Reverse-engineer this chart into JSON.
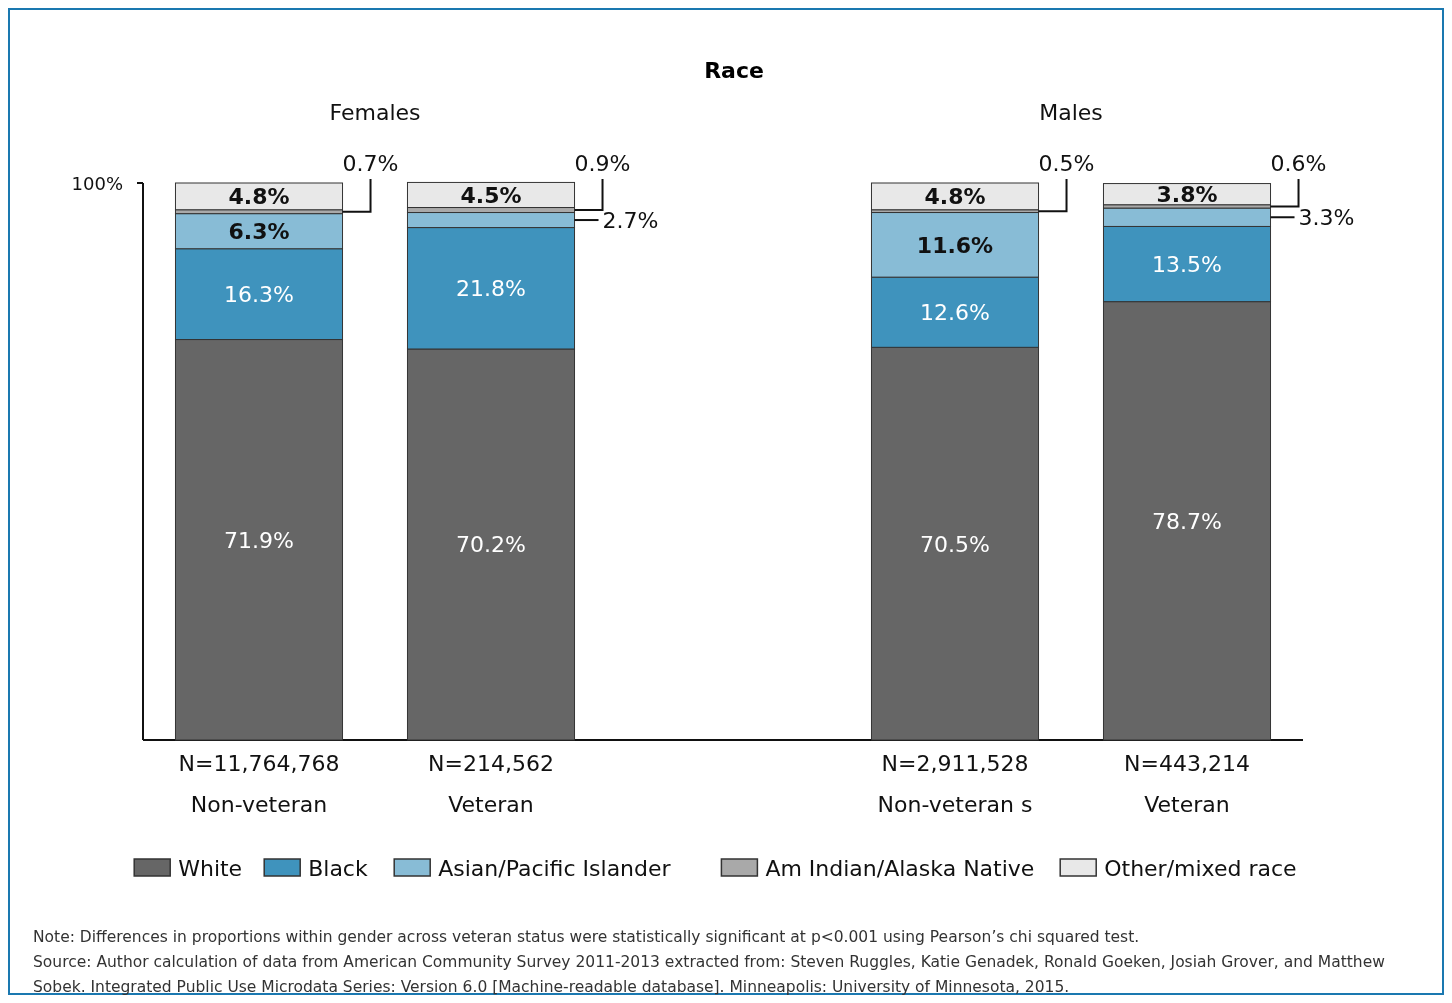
{
  "chart_data": {
    "type": "bar",
    "stacked": true,
    "title": "Race",
    "categories": [
      "N=11,764,768\nNon-veteran",
      "N=214,562\nVeteran",
      null,
      "N=2,911,528\nNon-veteran s",
      "N=443,214\nVeteran"
    ],
    "series": [
      {
        "name": "White",
        "color": "#666666",
        "values": [
          71.9,
          70.2,
          null,
          70.5,
          78.7
        ],
        "value_labels": [
          "71.9%",
          "70.2%",
          null,
          "70.5%",
          "78.7%"
        ]
      },
      {
        "name": "Black",
        "color": "#3f93bd",
        "values": [
          16.3,
          21.8,
          null,
          12.6,
          13.5
        ],
        "value_labels": [
          "16.3%",
          "21.8%",
          null,
          "12.6%",
          "13.5%"
        ]
      },
      {
        "name": "Asian/Pacific Islander",
        "color": "#88bcd6",
        "values": [
          6.3,
          2.7,
          null,
          11.6,
          3.3
        ],
        "value_labels": [
          "6.3%",
          "2.7%",
          null,
          "11.6%",
          "3.3%"
        ]
      },
      {
        "name": "Am Indian/Alaska Native",
        "color": "#a9a9a9",
        "values": [
          0.7,
          0.9,
          null,
          0.5,
          0.6
        ],
        "value_labels": [
          "0.7%",
          "0.9%",
          null,
          "0.5%",
          "0.6%"
        ]
      },
      {
        "name": "Other/mixed race",
        "color": "#e8e8e8",
        "values": [
          4.8,
          4.5,
          null,
          4.8,
          3.8
        ],
        "value_labels": [
          "4.8%",
          "4.5%",
          null,
          "4.8%",
          "3.8%"
        ]
      }
    ],
    "ylim": [
      0,
      100
    ],
    "yticks": [
      {
        "value": 100,
        "label": "100%"
      }
    ],
    "legend": "bottom",
    "annotations": [
      "Females",
      "Males",
      "Note: Differences in proportions within gender across veteran status were statistically significant at p<0.001 using Pearson’s chi squared test.",
      "Source: Author calculation of data from American Community Survey 2011-2013 extracted from: Steven Ruggles, Katie Genadek, Ronald Goeken, Josiah Grover, and Matthew Sobek. Integrated Public Use Microdata Series: Version 6.0 [Machine-readable database]. Minneapolis: University of Minnesota, 2015."
    ]
  }
}
